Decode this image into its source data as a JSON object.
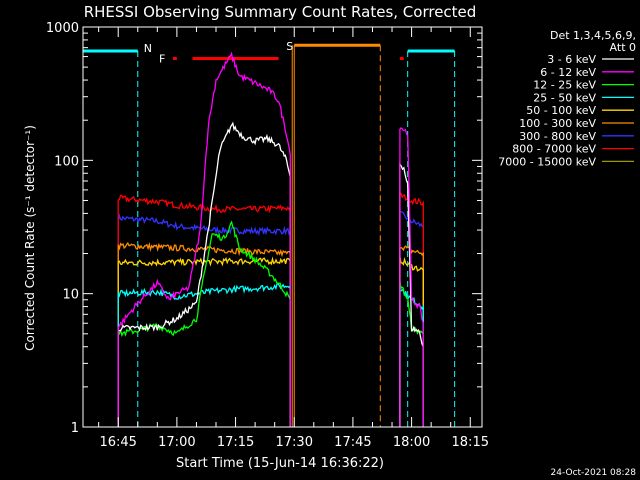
{
  "chart_data": {
    "type": "line",
    "title": "RHESSI Observing Summary Count Rates, Corrected",
    "ylabel": "Corrected Count Rate (s⁻¹ detector⁻¹)",
    "xlabel": "Start Time (15-Jun-14 16:36:22)",
    "y_scale": "log",
    "ylim": [
      1,
      1000
    ],
    "xlim": [
      "16:36",
      "18:18"
    ],
    "yticks": [
      {
        "v": 1,
        "label": "1"
      },
      {
        "v": 10,
        "label": "10"
      },
      {
        "v": 100,
        "label": "100"
      },
      {
        "v": 1000,
        "label": "1000"
      }
    ],
    "xticks": [
      "16:45",
      "17:00",
      "17:15",
      "17:30",
      "17:45",
      "18:00",
      "18:15"
    ],
    "legend_header": [
      "Det 1,3,4,5,6,9,",
      "Att 0"
    ],
    "legend_position": "right",
    "series": [
      {
        "name": "3 - 6 keV",
        "color": "#ffffff",
        "segments": [
          [
            [
              "16:45",
              5.5
            ],
            [
              "16:55",
              5.6
            ],
            [
              "17:00",
              6.5
            ],
            [
              "17:05",
              8.5
            ],
            [
              "17:08",
              30
            ],
            [
              "17:11",
              120
            ],
            [
              "17:14",
              185
            ],
            [
              "17:17",
              150
            ],
            [
              "17:20",
              140
            ],
            [
              "17:23",
              145
            ],
            [
              "17:26",
              130
            ],
            [
              "17:28",
              100
            ],
            [
              "17:29",
              75
            ]
          ],
          [
            [
              "17:57",
              95
            ],
            [
              "17:58",
              88
            ],
            [
              "17:59",
              65
            ],
            [
              "18:00",
              5.5
            ],
            [
              "18:02",
              5.2
            ],
            [
              "18:03",
              4
            ]
          ]
        ]
      },
      {
        "name": "6 - 12 keV",
        "color": "#ff00ff",
        "segments": [
          [
            [
              "16:45",
              5.6
            ],
            [
              "16:50",
              8.5
            ],
            [
              "16:55",
              12
            ],
            [
              "16:58",
              9
            ],
            [
              "17:00",
              10
            ],
            [
              "17:03",
              11
            ],
            [
              "17:06",
              30
            ],
            [
              "17:08",
              180
            ],
            [
              "17:10",
              400
            ],
            [
              "17:13",
              560
            ],
            [
              "17:14",
              610
            ],
            [
              "17:16",
              430
            ],
            [
              "17:20",
              380
            ],
            [
              "17:24",
              330
            ],
            [
              "17:26",
              280
            ],
            [
              "17:28",
              160
            ],
            [
              "17:29",
              110
            ]
          ],
          [
            [
              "17:57",
              180
            ],
            [
              "17:59",
              160
            ],
            [
              "18:00",
              9
            ],
            [
              "18:02",
              8
            ],
            [
              "18:03",
              6
            ]
          ]
        ]
      },
      {
        "name": "12 - 25 keV",
        "color": "#00ff00",
        "segments": [
          [
            [
              "16:45",
              5
            ],
            [
              "16:50",
              5.3
            ],
            [
              "16:55",
              5.8
            ],
            [
              "17:00",
              5
            ],
            [
              "17:05",
              6.5
            ],
            [
              "17:07",
              14
            ],
            [
              "17:09",
              28
            ],
            [
              "17:12",
              26
            ],
            [
              "17:14",
              34
            ],
            [
              "17:16",
              22
            ],
            [
              "17:20",
              18
            ],
            [
              "17:24",
              14
            ],
            [
              "17:27",
              11
            ],
            [
              "17:29",
              9
            ]
          ],
          [
            [
              "17:57",
              12
            ],
            [
              "17:59",
              9
            ],
            [
              "18:00",
              5.5
            ],
            [
              "18:03",
              5
            ]
          ]
        ]
      },
      {
        "name": "25 - 50 keV",
        "color": "#00ffff",
        "segments": [
          [
            [
              "16:45",
              10
            ],
            [
              "16:55",
              10.3
            ],
            [
              "17:00",
              9.5
            ],
            [
              "17:05",
              10
            ],
            [
              "17:10",
              10.5
            ],
            [
              "17:15",
              10.8
            ],
            [
              "17:20",
              11
            ],
            [
              "17:25",
              11.3
            ],
            [
              "17:29",
              11.5
            ]
          ],
          [
            [
              "17:57",
              11
            ],
            [
              "18:00",
              9
            ],
            [
              "18:03",
              8
            ]
          ]
        ]
      },
      {
        "name": "50 - 100 keV",
        "color": "#ffd700",
        "segments": [
          [
            [
              "16:45",
              17
            ],
            [
              "17:00",
              17.2
            ],
            [
              "17:15",
              17.5
            ],
            [
              "17:29",
              17.6
            ]
          ],
          [
            [
              "17:57",
              18
            ],
            [
              "18:00",
              16
            ],
            [
              "18:03",
              15
            ]
          ]
        ]
      },
      {
        "name": "100 - 300 keV",
        "color": "#ff8c00",
        "segments": [
          [
            [
              "16:45",
              23
            ],
            [
              "17:00",
              22
            ],
            [
              "17:15",
              21
            ],
            [
              "17:29",
              20
            ]
          ],
          [
            [
              "17:57",
              23
            ],
            [
              "18:00",
              21
            ],
            [
              "18:03",
              20
            ]
          ]
        ]
      },
      {
        "name": "300 - 800 keV",
        "color": "#3333ff",
        "segments": [
          [
            [
              "16:45",
              37
            ],
            [
              "16:55",
              35
            ],
            [
              "17:00",
              32
            ],
            [
              "17:10",
              30
            ],
            [
              "17:20",
              29.5
            ],
            [
              "17:29",
              29.5
            ]
          ],
          [
            [
              "17:57",
              40
            ],
            [
              "18:00",
              35
            ],
            [
              "18:03",
              32
            ]
          ]
        ]
      },
      {
        "name": "800 - 7000 keV",
        "color": "#ff0000",
        "segments": [
          [
            [
              "16:45",
              52
            ],
            [
              "16:55",
              49
            ],
            [
              "17:00",
              46
            ],
            [
              "17:10",
              43
            ],
            [
              "17:20",
              43
            ],
            [
              "17:29",
              44
            ]
          ],
          [
            [
              "17:57",
              55
            ],
            [
              "18:00",
              50
            ],
            [
              "18:03",
              48
            ]
          ]
        ]
      },
      {
        "name": "7000 - 15000 keV",
        "color": "#9a9a00",
        "segments": []
      }
    ],
    "annotations": {
      "night": {
        "label": "N",
        "color": "#00ffff",
        "solid": [
          [
            "16:36",
            "16:50"
          ],
          [
            "17:59",
            "18:11"
          ]
        ],
        "dashed_edges": [
          "16:50",
          "17:59",
          "18:11"
        ]
      },
      "flare": {
        "label": "F",
        "color": "#ff0000",
        "segments": [
          [
            "16:59",
            "17:00"
          ],
          [
            "17:04",
            "17:26"
          ],
          [
            "17:57",
            "17:58"
          ]
        ]
      },
      "saa": {
        "label": "S",
        "color": "#ff8c00",
        "span": [
          "17:30",
          "17:52"
        ],
        "dashed_end": "17:52"
      }
    },
    "grid": false
  },
  "footer": {
    "timestamp": "24-Oct-2021 08:28"
  }
}
